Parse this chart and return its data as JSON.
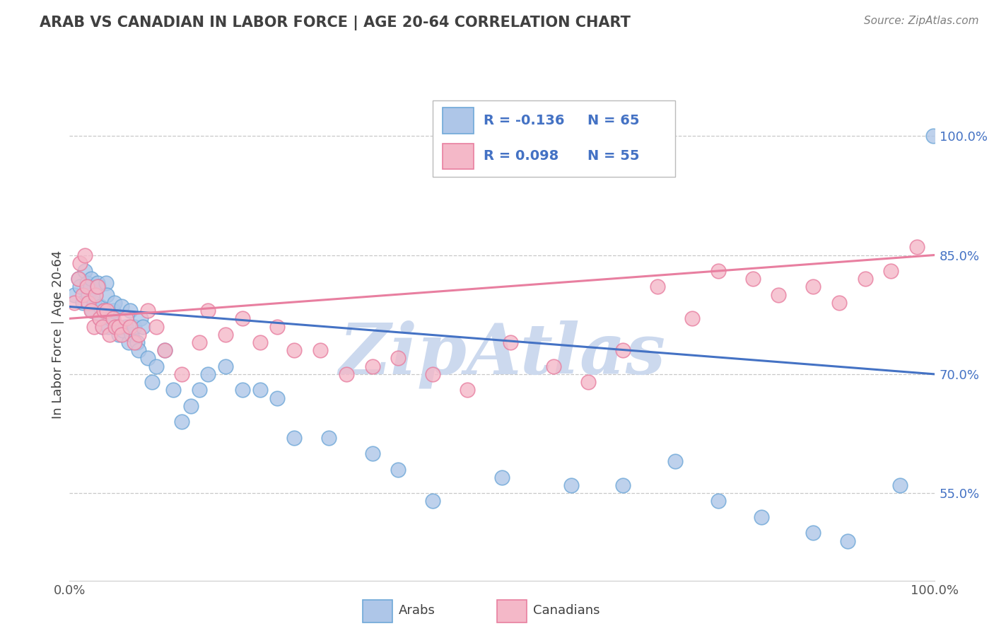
{
  "title": "ARAB VS CANADIAN IN LABOR FORCE | AGE 20-64 CORRELATION CHART",
  "source_text": "Source: ZipAtlas.com",
  "ylabel": "In Labor Force | Age 20-64",
  "xlim": [
    0.0,
    1.0
  ],
  "ylim": [
    0.44,
    1.06
  ],
  "yticks": [
    0.55,
    0.7,
    0.85,
    1.0
  ],
  "ytick_labels": [
    "55.0%",
    "70.0%",
    "85.0%",
    "100.0%"
  ],
  "xtick_labels": [
    "0.0%",
    "100.0%"
  ],
  "xticks": [
    0.0,
    1.0
  ],
  "arab_R": -0.136,
  "arab_N": 65,
  "canadian_R": 0.098,
  "canadian_N": 55,
  "arab_color": "#aec6e8",
  "canadian_color": "#f4b8c8",
  "arab_edge_color": "#6fa8d8",
  "canadian_edge_color": "#e87fa0",
  "trend_arab_color": "#4472c4",
  "trend_canadian_color": "#e87fa0",
  "legend_arab_label": "Arabs",
  "legend_canadian_label": "Canadians",
  "background_color": "#ffffff",
  "grid_color": "#c8c8c8",
  "title_color": "#404040",
  "source_color": "#808080",
  "watermark_text": "ZipAtlas",
  "watermark_color": "#ccd9ee",
  "arab_x": [
    0.005,
    0.01,
    0.012,
    0.015,
    0.018,
    0.02,
    0.022,
    0.024,
    0.025,
    0.026,
    0.028,
    0.03,
    0.032,
    0.033,
    0.035,
    0.036,
    0.038,
    0.04,
    0.042,
    0.043,
    0.045,
    0.047,
    0.05,
    0.052,
    0.055,
    0.057,
    0.06,
    0.062,
    0.065,
    0.068,
    0.07,
    0.072,
    0.075,
    0.078,
    0.08,
    0.082,
    0.085,
    0.09,
    0.095,
    0.1,
    0.11,
    0.12,
    0.13,
    0.14,
    0.15,
    0.16,
    0.18,
    0.2,
    0.22,
    0.24,
    0.26,
    0.3,
    0.35,
    0.38,
    0.42,
    0.5,
    0.58,
    0.64,
    0.7,
    0.75,
    0.8,
    0.86,
    0.9,
    0.96,
    0.999
  ],
  "arab_y": [
    0.8,
    0.82,
    0.81,
    0.79,
    0.83,
    0.815,
    0.8,
    0.81,
    0.82,
    0.78,
    0.79,
    0.8,
    0.815,
    0.81,
    0.77,
    0.785,
    0.76,
    0.78,
    0.815,
    0.8,
    0.76,
    0.77,
    0.78,
    0.79,
    0.76,
    0.75,
    0.785,
    0.755,
    0.76,
    0.74,
    0.78,
    0.75,
    0.76,
    0.74,
    0.73,
    0.77,
    0.76,
    0.72,
    0.69,
    0.71,
    0.73,
    0.68,
    0.64,
    0.66,
    0.68,
    0.7,
    0.71,
    0.68,
    0.68,
    0.67,
    0.62,
    0.62,
    0.6,
    0.58,
    0.54,
    0.57,
    0.56,
    0.56,
    0.59,
    0.54,
    0.52,
    0.5,
    0.49,
    0.56,
    1.0
  ],
  "canadian_x": [
    0.005,
    0.01,
    0.012,
    0.015,
    0.018,
    0.02,
    0.022,
    0.025,
    0.028,
    0.03,
    0.032,
    0.035,
    0.038,
    0.04,
    0.043,
    0.046,
    0.05,
    0.053,
    0.057,
    0.06,
    0.065,
    0.07,
    0.075,
    0.08,
    0.09,
    0.1,
    0.11,
    0.13,
    0.15,
    0.16,
    0.18,
    0.2,
    0.22,
    0.24,
    0.26,
    0.29,
    0.32,
    0.35,
    0.38,
    0.42,
    0.46,
    0.51,
    0.56,
    0.6,
    0.64,
    0.68,
    0.72,
    0.75,
    0.79,
    0.82,
    0.86,
    0.89,
    0.92,
    0.95,
    0.98
  ],
  "canadian_y": [
    0.79,
    0.82,
    0.84,
    0.8,
    0.85,
    0.81,
    0.79,
    0.78,
    0.76,
    0.8,
    0.81,
    0.77,
    0.76,
    0.78,
    0.78,
    0.75,
    0.77,
    0.76,
    0.76,
    0.75,
    0.77,
    0.76,
    0.74,
    0.75,
    0.78,
    0.76,
    0.73,
    0.7,
    0.74,
    0.78,
    0.75,
    0.77,
    0.74,
    0.76,
    0.73,
    0.73,
    0.7,
    0.71,
    0.72,
    0.7,
    0.68,
    0.74,
    0.71,
    0.69,
    0.73,
    0.81,
    0.77,
    0.83,
    0.82,
    0.8,
    0.81,
    0.79,
    0.82,
    0.83,
    0.86
  ],
  "arab_trend_x0": 0.0,
  "arab_trend_y0": 0.785,
  "arab_trend_x1": 1.0,
  "arab_trend_y1": 0.7,
  "cdn_trend_x0": 0.0,
  "cdn_trend_y0": 0.77,
  "cdn_trend_x1": 1.0,
  "cdn_trend_y1": 0.85
}
